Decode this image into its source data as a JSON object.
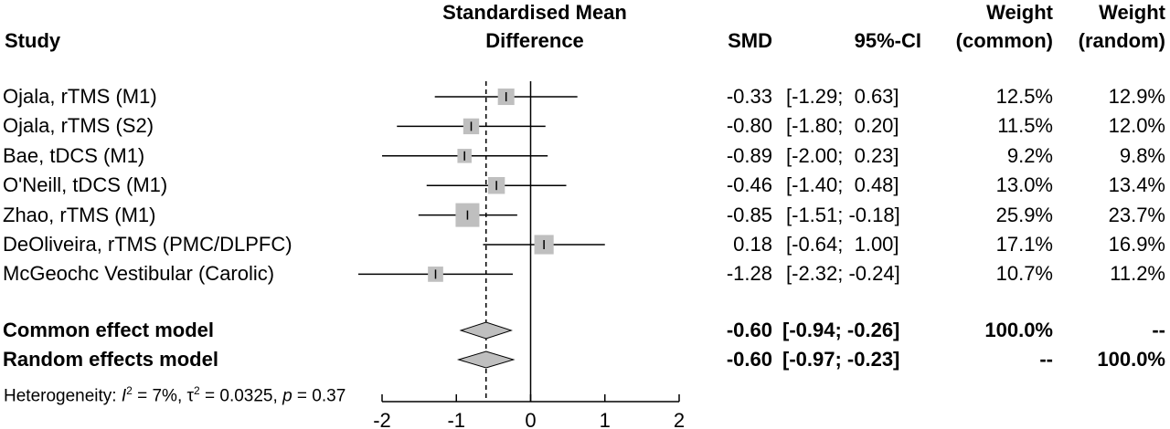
{
  "headers": {
    "study": "Study",
    "smd_line1": "Standardised Mean",
    "smd_line2": "Difference",
    "smd": "SMD",
    "ci": "95%-CI",
    "wc_line1": "Weight",
    "wc_line2": "(common)",
    "wr_line1": "Weight",
    "wr_line2": "(random)"
  },
  "chart_data": {
    "type": "forest",
    "xlim": [
      -2,
      2
    ],
    "x_ticks": [
      "-2",
      "-1",
      "0",
      "1",
      "2"
    ],
    "null_line": 0,
    "pooled_line": -0.6,
    "studies": [
      {
        "study": "Ojala, rTMS (M1)",
        "smd": -0.33,
        "lower": -1.29,
        "upper": 0.63,
        "smd_text": "-0.33",
        "ci_text": "[-1.29;  0.63]",
        "w_common": "12.5%",
        "w_random": "12.9%"
      },
      {
        "study": "Ojala, rTMS (S2)",
        "smd": -0.8,
        "lower": -1.8,
        "upper": 0.2,
        "smd_text": "-0.80",
        "ci_text": "[-1.80;  0.20]",
        "w_common": "11.5%",
        "w_random": "12.0%"
      },
      {
        "study": "Bae, tDCS (M1)",
        "smd": -0.89,
        "lower": -2.0,
        "upper": 0.23,
        "smd_text": "-0.89",
        "ci_text": "[-2.00;  0.23]",
        "w_common": "9.2%",
        "w_random": "9.8%"
      },
      {
        "study": "O'Neill, tDCS (M1)",
        "smd": -0.46,
        "lower": -1.4,
        "upper": 0.48,
        "smd_text": "-0.46",
        "ci_text": "[-1.40;  0.48]",
        "w_common": "13.0%",
        "w_random": "13.4%"
      },
      {
        "study": "Zhao, rTMS (M1)",
        "smd": -0.85,
        "lower": -1.51,
        "upper": -0.18,
        "smd_text": "-0.85",
        "ci_text": "[-1.51; -0.18]",
        "w_common": "25.9%",
        "w_random": "23.7%"
      },
      {
        "study": "DeOliveira, rTMS (PMC/DLPFC)",
        "smd": 0.18,
        "lower": -0.64,
        "upper": 1.0,
        "smd_text": "0.18",
        "ci_text": "[-0.64;  1.00]",
        "w_common": "17.1%",
        "w_random": "16.9%"
      },
      {
        "study": "McGeochc Vestibular (Carolic)",
        "smd": -1.28,
        "lower": -2.32,
        "upper": -0.24,
        "smd_text": "-1.28",
        "ci_text": "[-2.32; -0.24]",
        "w_common": "10.7%",
        "w_random": "11.2%"
      }
    ],
    "pooled": [
      {
        "model": "Common effect model",
        "smd": -0.6,
        "lower": -0.94,
        "upper": -0.26,
        "smd_text": "-0.60",
        "ci_text": "[-0.94; -0.26]",
        "w_common": "100.0%",
        "w_random": "--"
      },
      {
        "model": "Random effects model",
        "smd": -0.6,
        "lower": -0.97,
        "upper": -0.23,
        "smd_text": "-0.60",
        "ci_text": "[-0.97; -0.23]",
        "w_common": "--",
        "w_random": "100.0%"
      }
    ],
    "heterogeneity": {
      "prefix": "Heterogeneity: ",
      "i2": "7%",
      "tau2": "0.0325",
      "p": "0.37"
    }
  },
  "colors": {
    "box": "#bfbfbf",
    "diamond": "#bfbfbf",
    "line": "#000000"
  }
}
